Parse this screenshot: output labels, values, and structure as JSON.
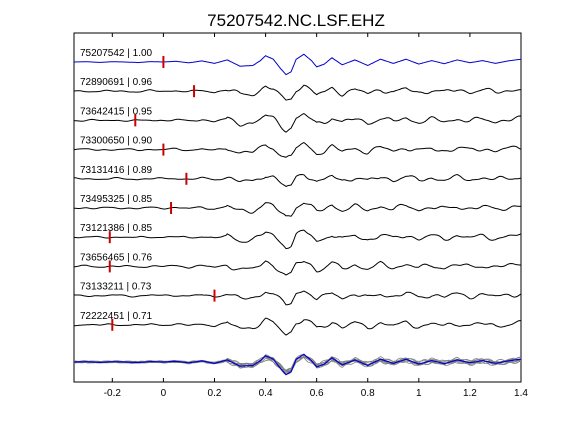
{
  "chart_data": {
    "type": "line",
    "title": "75207542.NC.LSF.EHZ",
    "xlabel": "",
    "ylabel": "",
    "xlim": [
      -0.35,
      1.4
    ],
    "x_ticks": [
      -0.2,
      0,
      0.2,
      0.4,
      0.6,
      0.8,
      1,
      1.2,
      1.4
    ],
    "x_tick_labels": [
      "-0.2",
      "0",
      "0.2",
      "0.4",
      "0.6",
      "0.8",
      "1",
      "1.2",
      "1.4"
    ],
    "grid": false,
    "legend": "none",
    "reference_color": "#0000cc",
    "trace_color": "#000000",
    "stack_color": "#808080",
    "pick_color": "#cc0000",
    "traces": [
      {
        "label": "75207542 | 1.00",
        "pick": 0.0,
        "seed": 1,
        "reference": true
      },
      {
        "label": "72890691 | 0.96",
        "pick": 0.12,
        "seed": 2,
        "reference": false
      },
      {
        "label": "73642415 | 0.95",
        "pick": -0.11,
        "seed": 3,
        "reference": false
      },
      {
        "label": "73300650 | 0.90",
        "pick": 0.0,
        "seed": 4,
        "reference": false
      },
      {
        "label": "73131416 | 0.89",
        "pick": 0.09,
        "seed": 5,
        "reference": false
      },
      {
        "label": "73495325 | 0.85",
        "pick": 0.03,
        "seed": 6,
        "reference": false
      },
      {
        "label": "73121386 | 0.85",
        "pick": -0.21,
        "seed": 7,
        "reference": false
      },
      {
        "label": "73656465 | 0.76",
        "pick": -0.21,
        "seed": 8,
        "reference": false
      },
      {
        "label": "73133211 | 0.73",
        "pick": 0.2,
        "seed": 9,
        "reference": false
      },
      {
        "label": "72222451 | 0.71",
        "pick": -0.2,
        "seed": 10,
        "reference": false
      }
    ],
    "waveform": {
      "x": [
        -0.35,
        -0.3,
        -0.25,
        -0.2,
        -0.15,
        -0.1,
        -0.05,
        0,
        0.05,
        0.1,
        0.15,
        0.2,
        0.25,
        0.3,
        0.35,
        0.38,
        0.4,
        0.43,
        0.46,
        0.48,
        0.5,
        0.52,
        0.55,
        0.58,
        0.6,
        0.63,
        0.66,
        0.7,
        0.75,
        0.8,
        0.85,
        0.9,
        0.95,
        1.0,
        1.05,
        1.1,
        1.15,
        1.2,
        1.25,
        1.3,
        1.35,
        1.4
      ],
      "y": [
        0,
        0.02,
        -0.03,
        0.02,
        0,
        -0.04,
        0.03,
        0,
        0.05,
        -0.06,
        0.08,
        -0.1,
        0.15,
        -0.3,
        -0.25,
        0.1,
        0.45,
        0.2,
        -0.5,
        -0.9,
        -0.7,
        0.2,
        0.55,
        0.1,
        -0.35,
        -0.15,
        0.3,
        -0.2,
        0.15,
        -0.25,
        0.2,
        -0.1,
        0.2,
        -0.15,
        0.1,
        -0.12,
        0.15,
        -0.05,
        0.1,
        -0.1,
        0.08,
        0.2
      ]
    }
  }
}
